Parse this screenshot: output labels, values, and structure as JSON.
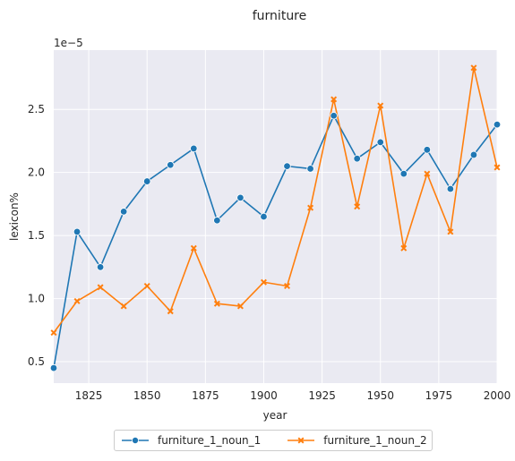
{
  "chart_data": {
    "type": "line",
    "title": "furniture",
    "xlabel": "year",
    "ylabel": "lexicon%",
    "y_multiplier_label": "1e−5",
    "xlim": [
      1810,
      2000
    ],
    "ylim": [
      0.33,
      2.97
    ],
    "x_ticks": [
      1825,
      1850,
      1875,
      1900,
      1925,
      1950,
      1975,
      2000
    ],
    "y_ticks": [
      0.5,
      1.0,
      1.5,
      2.0,
      2.5
    ],
    "y_tick_labels": [
      "0.5",
      "1.0",
      "1.5",
      "2.0",
      "2.5"
    ],
    "grid": true,
    "legend_position": "bottom-center",
    "x": [
      1810,
      1820,
      1830,
      1840,
      1850,
      1860,
      1870,
      1880,
      1890,
      1900,
      1910,
      1920,
      1930,
      1940,
      1950,
      1960,
      1970,
      1980,
      1990,
      2000
    ],
    "series": [
      {
        "name": "furniture_1_noun_1",
        "color": "#1f77b4",
        "marker": "circle",
        "values": [
          0.45,
          1.53,
          1.25,
          1.69,
          1.93,
          2.06,
          2.19,
          1.62,
          1.8,
          1.65,
          2.05,
          2.03,
          2.45,
          2.11,
          2.24,
          1.99,
          2.18,
          1.87,
          2.14,
          2.38
        ]
      },
      {
        "name": "furniture_1_noun_2",
        "color": "#ff7f0e",
        "marker": "x",
        "values": [
          0.73,
          0.98,
          1.09,
          0.94,
          1.1,
          0.9,
          1.4,
          0.96,
          0.94,
          1.13,
          1.1,
          1.72,
          2.58,
          1.73,
          2.53,
          1.4,
          1.99,
          1.53,
          2.83,
          2.04
        ]
      }
    ]
  }
}
